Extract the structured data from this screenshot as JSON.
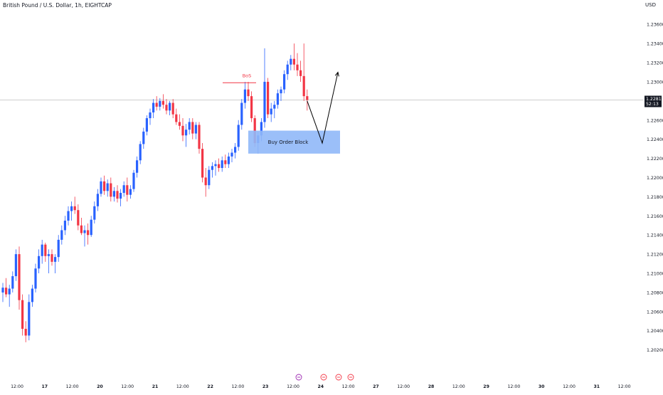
{
  "chart_data": {
    "type": "candlestick",
    "title": "British Pound / U.S. Dollar, 1h, EIGHTCAP",
    "currency": "USD",
    "ylim": [
      1.199,
      1.2378
    ],
    "y_ticks": [
      "1.23600",
      "1.23400",
      "1.23200",
      "1.23000",
      "1.22600",
      "1.22400",
      "1.22200",
      "1.22000",
      "1.21800",
      "1.21600",
      "1.21400",
      "1.21200",
      "1.21000",
      "1.20800",
      "1.20600",
      "1.20400",
      "1.20200"
    ],
    "x_ticks": [
      "12:00",
      "17",
      "12:00",
      "20",
      "12:00",
      "21",
      "12:00",
      "22",
      "12:00",
      "23",
      "12:00",
      "24",
      "12:00",
      "27",
      "12:00",
      "28",
      "12:00",
      "29",
      "12:00",
      "30",
      "12:00",
      "31",
      "12:00"
    ],
    "last_price": "1.22811",
    "countdown": "52:13",
    "colors": {
      "up": "#2962ff",
      "down": "#f23645",
      "order_block": "#90b8f8",
      "price_line": "#9e9e9e"
    },
    "annotations": {
      "bos_label": "BoS",
      "bos_level": 1.2299,
      "order_block_label": "Buy Order Block",
      "order_block_range": [
        1.2225,
        1.2249
      ]
    },
    "path_forecast": [
      1.228,
      1.2236,
      1.231
    ],
    "candles": [
      {
        "o": 1.208,
        "h": 1.209,
        "l": 1.207,
        "c": 1.2085
      },
      {
        "o": 1.2085,
        "h": 1.2095,
        "l": 1.2075,
        "c": 1.2078
      },
      {
        "o": 1.2078,
        "h": 1.2088,
        "l": 1.2065,
        "c": 1.2084
      },
      {
        "o": 1.2084,
        "h": 1.2102,
        "l": 1.208,
        "c": 1.2097
      },
      {
        "o": 1.2097,
        "h": 1.2125,
        "l": 1.2092,
        "c": 1.212
      },
      {
        "o": 1.212,
        "h": 1.2128,
        "l": 1.2062,
        "c": 1.2072
      },
      {
        "o": 1.2072,
        "h": 1.2078,
        "l": 1.2035,
        "c": 1.2042
      },
      {
        "o": 1.2042,
        "h": 1.205,
        "l": 1.2028,
        "c": 1.2035
      },
      {
        "o": 1.2035,
        "h": 1.2078,
        "l": 1.203,
        "c": 1.207
      },
      {
        "o": 1.207,
        "h": 1.2088,
        "l": 1.2065,
        "c": 1.2084
      },
      {
        "o": 1.2084,
        "h": 1.211,
        "l": 1.208,
        "c": 1.2105
      },
      {
        "o": 1.2105,
        "h": 1.2125,
        "l": 1.21,
        "c": 1.2118
      },
      {
        "o": 1.2118,
        "h": 1.2135,
        "l": 1.211,
        "c": 1.213
      },
      {
        "o": 1.213,
        "h": 1.2132,
        "l": 1.2112,
        "c": 1.2118
      },
      {
        "o": 1.2118,
        "h": 1.2125,
        "l": 1.21,
        "c": 1.212
      },
      {
        "o": 1.212,
        "h": 1.2125,
        "l": 1.2108,
        "c": 1.2112
      },
      {
        "o": 1.2112,
        "h": 1.212,
        "l": 1.21,
        "c": 1.2117
      },
      {
        "o": 1.2117,
        "h": 1.214,
        "l": 1.2112,
        "c": 1.2135
      },
      {
        "o": 1.2135,
        "h": 1.215,
        "l": 1.213,
        "c": 1.2145
      },
      {
        "o": 1.2145,
        "h": 1.216,
        "l": 1.214,
        "c": 1.2155
      },
      {
        "o": 1.2155,
        "h": 1.217,
        "l": 1.215,
        "c": 1.2165
      },
      {
        "o": 1.2165,
        "h": 1.2175,
        "l": 1.2155,
        "c": 1.217
      },
      {
        "o": 1.217,
        "h": 1.218,
        "l": 1.2162,
        "c": 1.2166
      },
      {
        "o": 1.2166,
        "h": 1.2172,
        "l": 1.2145,
        "c": 1.215
      },
      {
        "o": 1.215,
        "h": 1.2158,
        "l": 1.214,
        "c": 1.2142
      },
      {
        "o": 1.2142,
        "h": 1.215,
        "l": 1.2128,
        "c": 1.2145
      },
      {
        "o": 1.2145,
        "h": 1.2152,
        "l": 1.213,
        "c": 1.214
      },
      {
        "o": 1.214,
        "h": 1.216,
        "l": 1.2138,
        "c": 1.2156
      },
      {
        "o": 1.2156,
        "h": 1.2175,
        "l": 1.2152,
        "c": 1.217
      },
      {
        "o": 1.217,
        "h": 1.2188,
        "l": 1.2165,
        "c": 1.2183
      },
      {
        "o": 1.2183,
        "h": 1.22,
        "l": 1.218,
        "c": 1.2196
      },
      {
        "o": 1.2196,
        "h": 1.2202,
        "l": 1.2182,
        "c": 1.2186
      },
      {
        "o": 1.2186,
        "h": 1.2198,
        "l": 1.218,
        "c": 1.2194
      },
      {
        "o": 1.2194,
        "h": 1.22,
        "l": 1.2175,
        "c": 1.218
      },
      {
        "o": 1.218,
        "h": 1.219,
        "l": 1.2175,
        "c": 1.2186
      },
      {
        "o": 1.2186,
        "h": 1.2192,
        "l": 1.2174,
        "c": 1.2178
      },
      {
        "o": 1.2178,
        "h": 1.2188,
        "l": 1.217,
        "c": 1.2184
      },
      {
        "o": 1.2184,
        "h": 1.2196,
        "l": 1.218,
        "c": 1.2192
      },
      {
        "o": 1.2192,
        "h": 1.22,
        "l": 1.2175,
        "c": 1.2182
      },
      {
        "o": 1.2182,
        "h": 1.2192,
        "l": 1.2178,
        "c": 1.2188
      },
      {
        "o": 1.2188,
        "h": 1.2208,
        "l": 1.2185,
        "c": 1.2205
      },
      {
        "o": 1.2205,
        "h": 1.2222,
        "l": 1.22,
        "c": 1.2218
      },
      {
        "o": 1.2218,
        "h": 1.2238,
        "l": 1.2214,
        "c": 1.2235
      },
      {
        "o": 1.2235,
        "h": 1.2252,
        "l": 1.223,
        "c": 1.2248
      },
      {
        "o": 1.2248,
        "h": 1.2265,
        "l": 1.2244,
        "c": 1.2262
      },
      {
        "o": 1.2262,
        "h": 1.2272,
        "l": 1.2255,
        "c": 1.2268
      },
      {
        "o": 1.2268,
        "h": 1.2282,
        "l": 1.2262,
        "c": 1.2278
      },
      {
        "o": 1.2278,
        "h": 1.2285,
        "l": 1.227,
        "c": 1.2274
      },
      {
        "o": 1.2274,
        "h": 1.2283,
        "l": 1.227,
        "c": 1.228
      },
      {
        "o": 1.228,
        "h": 1.2287,
        "l": 1.2272,
        "c": 1.2276
      },
      {
        "o": 1.2276,
        "h": 1.2282,
        "l": 1.2266,
        "c": 1.227
      },
      {
        "o": 1.227,
        "h": 1.228,
        "l": 1.2265,
        "c": 1.2278
      },
      {
        "o": 1.2278,
        "h": 1.2282,
        "l": 1.2262,
        "c": 1.2266
      },
      {
        "o": 1.2266,
        "h": 1.2272,
        "l": 1.2255,
        "c": 1.2258
      },
      {
        "o": 1.2258,
        "h": 1.2266,
        "l": 1.225,
        "c": 1.2254
      },
      {
        "o": 1.2254,
        "h": 1.2262,
        "l": 1.2238,
        "c": 1.2244
      },
      {
        "o": 1.2244,
        "h": 1.2256,
        "l": 1.2232,
        "c": 1.225
      },
      {
        "o": 1.225,
        "h": 1.2262,
        "l": 1.2245,
        "c": 1.2258
      },
      {
        "o": 1.2258,
        "h": 1.2262,
        "l": 1.224,
        "c": 1.2246
      },
      {
        "o": 1.2246,
        "h": 1.2258,
        "l": 1.224,
        "c": 1.2255
      },
      {
        "o": 1.2255,
        "h": 1.2258,
        "l": 1.2225,
        "c": 1.223
      },
      {
        "o": 1.223,
        "h": 1.2236,
        "l": 1.2195,
        "c": 1.22
      },
      {
        "o": 1.22,
        "h": 1.221,
        "l": 1.218,
        "c": 1.2192
      },
      {
        "o": 1.2192,
        "h": 1.2212,
        "l": 1.2188,
        "c": 1.2208
      },
      {
        "o": 1.2208,
        "h": 1.2216,
        "l": 1.22,
        "c": 1.2212
      },
      {
        "o": 1.2212,
        "h": 1.2218,
        "l": 1.2202,
        "c": 1.2214
      },
      {
        "o": 1.2214,
        "h": 1.222,
        "l": 1.2206,
        "c": 1.221
      },
      {
        "o": 1.221,
        "h": 1.2222,
        "l": 1.2206,
        "c": 1.2218
      },
      {
        "o": 1.2218,
        "h": 1.2224,
        "l": 1.221,
        "c": 1.2214
      },
      {
        "o": 1.2214,
        "h": 1.2226,
        "l": 1.221,
        "c": 1.2222
      },
      {
        "o": 1.2222,
        "h": 1.223,
        "l": 1.2216,
        "c": 1.2226
      },
      {
        "o": 1.2226,
        "h": 1.2236,
        "l": 1.222,
        "c": 1.2232
      },
      {
        "o": 1.2232,
        "h": 1.226,
        "l": 1.2228,
        "c": 1.2255
      },
      {
        "o": 1.2255,
        "h": 1.2282,
        "l": 1.225,
        "c": 1.2278
      },
      {
        "o": 1.2278,
        "h": 1.23,
        "l": 1.2272,
        "c": 1.2292
      },
      {
        "o": 1.2292,
        "h": 1.23,
        "l": 1.228,
        "c": 1.2285
      },
      {
        "o": 1.2285,
        "h": 1.229,
        "l": 1.2258,
        "c": 1.2262
      },
      {
        "o": 1.2262,
        "h": 1.2265,
        "l": 1.2232,
        "c": 1.2236
      },
      {
        "o": 1.2236,
        "h": 1.2248,
        "l": 1.2225,
        "c": 1.2244
      },
      {
        "o": 1.2244,
        "h": 1.2262,
        "l": 1.2238,
        "c": 1.2258
      },
      {
        "o": 1.2258,
        "h": 1.2335,
        "l": 1.2252,
        "c": 1.23
      },
      {
        "o": 1.23,
        "h": 1.2304,
        "l": 1.2262,
        "c": 1.2266
      },
      {
        "o": 1.2266,
        "h": 1.2278,
        "l": 1.2258,
        "c": 1.2272
      },
      {
        "o": 1.2272,
        "h": 1.228,
        "l": 1.2262,
        "c": 1.2276
      },
      {
        "o": 1.2276,
        "h": 1.2292,
        "l": 1.2272,
        "c": 1.2288
      },
      {
        "o": 1.2288,
        "h": 1.2295,
        "l": 1.228,
        "c": 1.2292
      },
      {
        "o": 1.2292,
        "h": 1.2312,
        "l": 1.2288,
        "c": 1.2308
      },
      {
        "o": 1.2308,
        "h": 1.2322,
        "l": 1.2302,
        "c": 1.2318
      },
      {
        "o": 1.2318,
        "h": 1.2328,
        "l": 1.2312,
        "c": 1.2324
      },
      {
        "o": 1.2324,
        "h": 1.234,
        "l": 1.2312,
        "c": 1.2318
      },
      {
        "o": 1.2318,
        "h": 1.233,
        "l": 1.2306,
        "c": 1.2312
      },
      {
        "o": 1.2312,
        "h": 1.2322,
        "l": 1.23,
        "c": 1.2306
      },
      {
        "o": 1.2306,
        "h": 1.234,
        "l": 1.228,
        "c": 1.2285
      },
      {
        "o": 1.2285,
        "h": 1.2292,
        "l": 1.227,
        "c": 1.2281
      }
    ]
  }
}
